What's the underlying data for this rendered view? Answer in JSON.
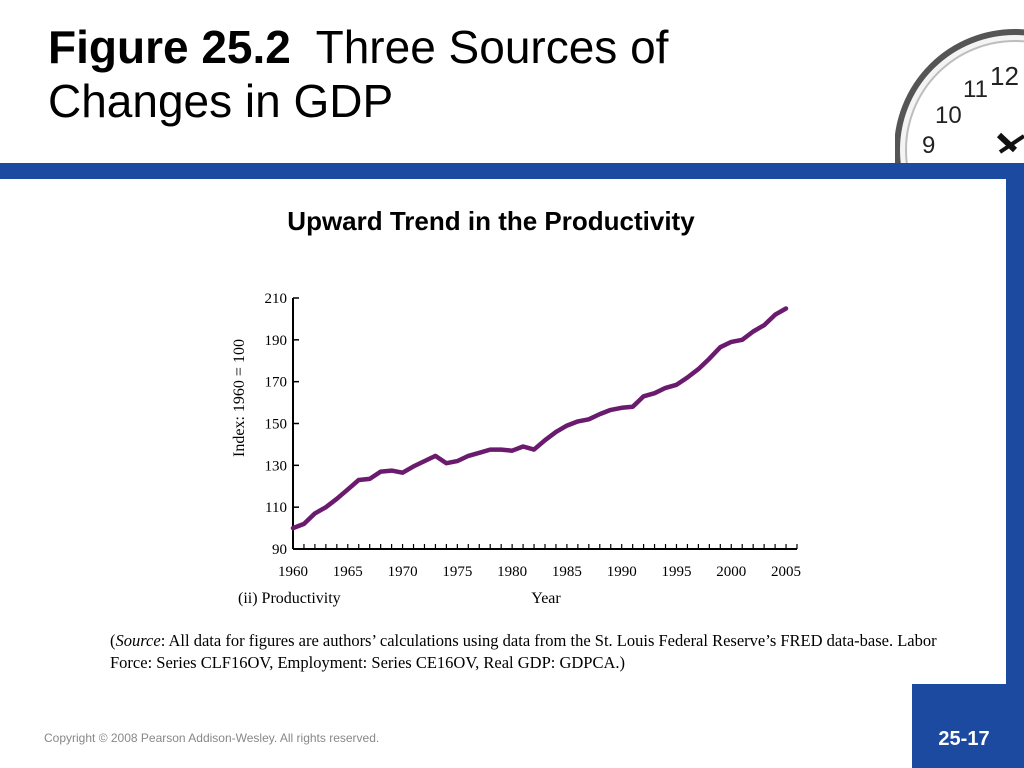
{
  "slide": {
    "title_bold": "Figure 25.2",
    "title_rest_line1": "Three Sources of",
    "title_line2": "Changes in GDP",
    "subtitle": "Upward Trend in the Productivity",
    "source_italic": "Source",
    "source_text_part1": "(",
    "source_text_part2": ": All data for figures are authors’ calculations using data from the St. Louis Federal Reserve’s FRED data-base. Labor Force: Series CLF16OV, Employment: Series CE16OV, Real GDP: GDPCA.)",
    "copyright": "Copyright © 2008 Pearson Addison-Wesley. All rights reserved.",
    "page_number": "25-17",
    "brand_color": "#1b4aa0"
  },
  "chart_data": {
    "type": "line",
    "title": "",
    "panel_label": "(ii) Productivity",
    "xlabel": "Year",
    "ylabel": "Index: 1960 = 100",
    "xlim": [
      1960,
      2006
    ],
    "ylim": [
      90,
      210
    ],
    "xticks": [
      1960,
      1965,
      1970,
      1975,
      1980,
      1985,
      1990,
      1995,
      2000,
      2005
    ],
    "yticks": [
      90,
      110,
      130,
      150,
      170,
      190,
      210
    ],
    "grid": false,
    "line_color": "#6a1b6e",
    "series": [
      {
        "x": [
          1960,
          1961,
          1962,
          1963,
          1964,
          1965,
          1966,
          1967,
          1968,
          1969,
          1970,
          1971,
          1972,
          1973,
          1974,
          1975,
          1976,
          1977,
          1978,
          1979,
          1980,
          1981,
          1982,
          1983,
          1984,
          1985,
          1986,
          1987,
          1988,
          1989,
          1990,
          1991,
          1992,
          1993,
          1994,
          1995,
          1996,
          1997,
          1998,
          1999,
          2000,
          2001,
          2002,
          2003,
          2004,
          2005
        ],
        "y": [
          100,
          102,
          107,
          110,
          114,
          118.5,
          123,
          123.5,
          127,
          127.5,
          126.5,
          129.5,
          132,
          134.5,
          131,
          132,
          134.5,
          136,
          137.5,
          137.5,
          137,
          139,
          137.5,
          142,
          146,
          149,
          151,
          152,
          154.5,
          156.5,
          157.5,
          158,
          163,
          164.5,
          167,
          168.5,
          172,
          176,
          181,
          186.5,
          189,
          190,
          194,
          197,
          202,
          205
        ]
      }
    ]
  }
}
